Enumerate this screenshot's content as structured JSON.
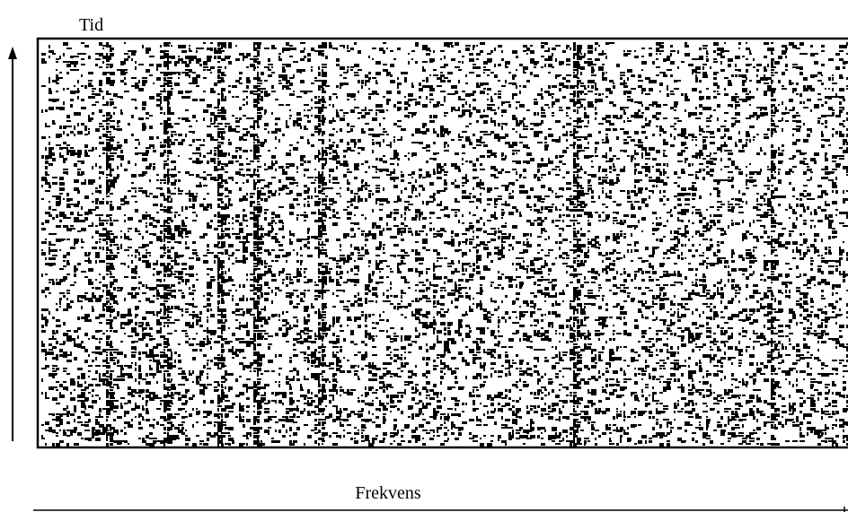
{
  "y_axis_label": "Tid",
  "x_axis_label": "Frekvens"
}
